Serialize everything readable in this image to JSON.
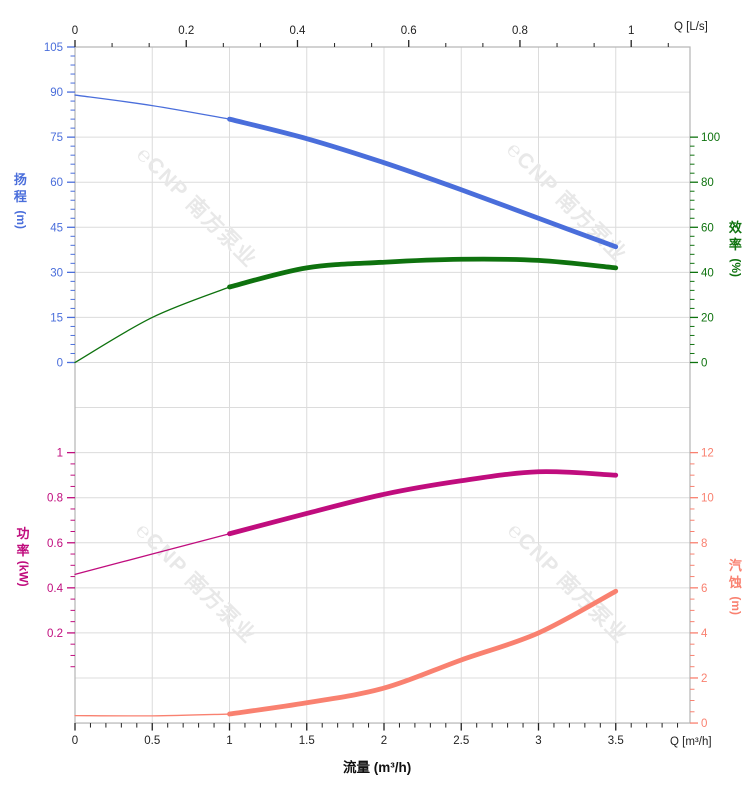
{
  "watermark": {
    "text": "℮CNP 南方泵业",
    "color": "#e8e8e8"
  },
  "chart_data": {
    "type": "line",
    "title": "pump performance curves (head / efficiency / power / NPSH vs flow)",
    "grid": {
      "on": true,
      "color": "#dcdcdc",
      "border_color": "#b5b5b5"
    },
    "x_bottom": {
      "title": "流量 (m³/h)",
      "unit": "Q [m³/h]",
      "majors": [
        0,
        0.5,
        1,
        1.5,
        2,
        2.5,
        3,
        3.5
      ],
      "minor_step": 0.1,
      "minor_max": 3.9,
      "range": [
        0,
        3.98
      ],
      "color": "#222222"
    },
    "x_top": {
      "unit": "Q [L/s]",
      "majors": [
        0,
        0.2,
        0.4,
        0.6,
        0.8,
        1
      ],
      "minors_per_major": 2,
      "ls_to_m3h": 3.6,
      "color": "#222222"
    },
    "y_head": {
      "title": "扬程",
      "unit": "(m)",
      "side": "left",
      "majors": [
        0,
        15,
        30,
        45,
        60,
        75,
        90,
        105
      ],
      "minor_step": 3,
      "minor_range": [
        3,
        102
      ],
      "range": [
        0,
        105
      ],
      "color": "#4a6edb"
    },
    "y_eff": {
      "title": "效率",
      "unit": "(%)",
      "side": "right",
      "majors": [
        0,
        20,
        40,
        60,
        80,
        100
      ],
      "minor_step": 4,
      "minor_range": [
        4,
        96
      ],
      "range": [
        0,
        100
      ],
      "color": "#0e720e"
    },
    "y_power": {
      "title": "功率",
      "unit": "(kW)",
      "side": "left",
      "majors": [
        0.2,
        0.4,
        0.6,
        0.8,
        1
      ],
      "minor_step": 0.05,
      "minor_range": [
        0.05,
        1.0
      ],
      "range": [
        -0.2,
        1
      ],
      "color": "#c00d7e"
    },
    "y_npsh": {
      "title": "汽蚀",
      "unit": "(m)",
      "side": "right",
      "majors": [
        0,
        2,
        4,
        6,
        8,
        10,
        12
      ],
      "minor_step": 0.5,
      "minor_range": [
        0.5,
        11.5
      ],
      "range": [
        0,
        12
      ],
      "color": "#f98170"
    },
    "series": [
      {
        "name": "head",
        "axis": "y_head",
        "color": "#4a6edb",
        "thin_until": 1,
        "points": [
          [
            0,
            89
          ],
          [
            0.5,
            85.5
          ],
          [
            1,
            81
          ],
          [
            1.5,
            74.5
          ],
          [
            2,
            66.5
          ],
          [
            2.5,
            57.5
          ],
          [
            3,
            48
          ],
          [
            3.5,
            38.5
          ]
        ]
      },
      {
        "name": "efficiency",
        "axis": "y_eff",
        "color": "#0e720e",
        "thin_until": 1,
        "points": [
          [
            0,
            0
          ],
          [
            0.5,
            20
          ],
          [
            1,
            33.5
          ],
          [
            1.5,
            42
          ],
          [
            2,
            44.5
          ],
          [
            2.5,
            45.8
          ],
          [
            3,
            45.3
          ],
          [
            3.5,
            42
          ]
        ]
      },
      {
        "name": "power",
        "axis": "y_power",
        "color": "#c00d7e",
        "thin_until": 1,
        "points": [
          [
            0,
            0.46
          ],
          [
            0.5,
            0.55
          ],
          [
            1,
            0.64
          ],
          [
            1.5,
            0.73
          ],
          [
            2,
            0.815
          ],
          [
            2.5,
            0.875
          ],
          [
            3,
            0.915
          ],
          [
            3.5,
            0.9
          ]
        ]
      },
      {
        "name": "npsh",
        "axis": "y_npsh",
        "color": "#f98170",
        "thin_until": 1,
        "points": [
          [
            0,
            0.33
          ],
          [
            0.5,
            0.32
          ],
          [
            1,
            0.4
          ],
          [
            1.5,
            0.9
          ],
          [
            2,
            1.55
          ],
          [
            2.5,
            2.8
          ],
          [
            3,
            4.0
          ],
          [
            3.5,
            5.85
          ]
        ]
      }
    ]
  }
}
